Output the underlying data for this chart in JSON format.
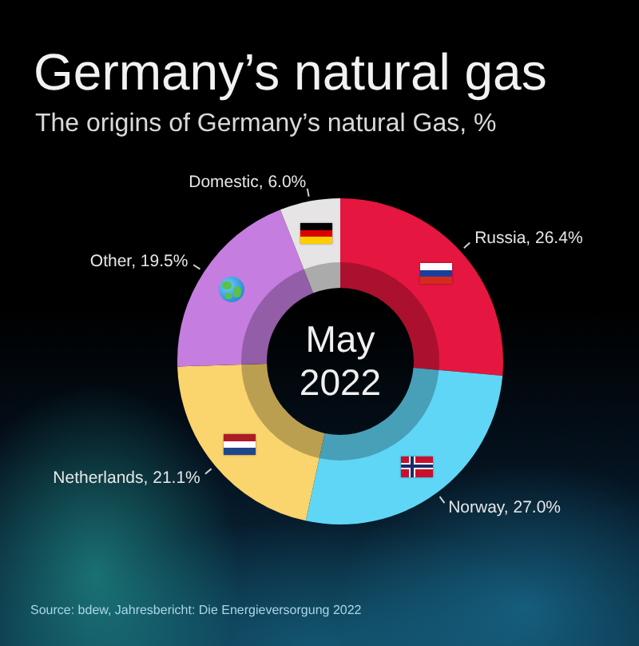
{
  "chart_data": {
    "type": "donut",
    "title": "Germany’s natural gas",
    "subtitle": "The origins of Germany’s natural Gas, %",
    "categories": [
      "Russia",
      "Norway",
      "Netherlands",
      "Other",
      "Domestic"
    ],
    "values": [
      26.4,
      27.0,
      21.1,
      19.5,
      6.0
    ],
    "value_labels": [
      "26.4%",
      "27.0%",
      "21.1%",
      "19.5%",
      "6.0%"
    ],
    "colors": [
      "#e5163f",
      "#5fd6f6",
      "#fad46c",
      "#c57ddf",
      "#e6e4e4"
    ],
    "annotations": [
      "May 2022",
      "Source: bdew, Jahresbericht: Die Energieversorgung 2022"
    ]
  }
}
